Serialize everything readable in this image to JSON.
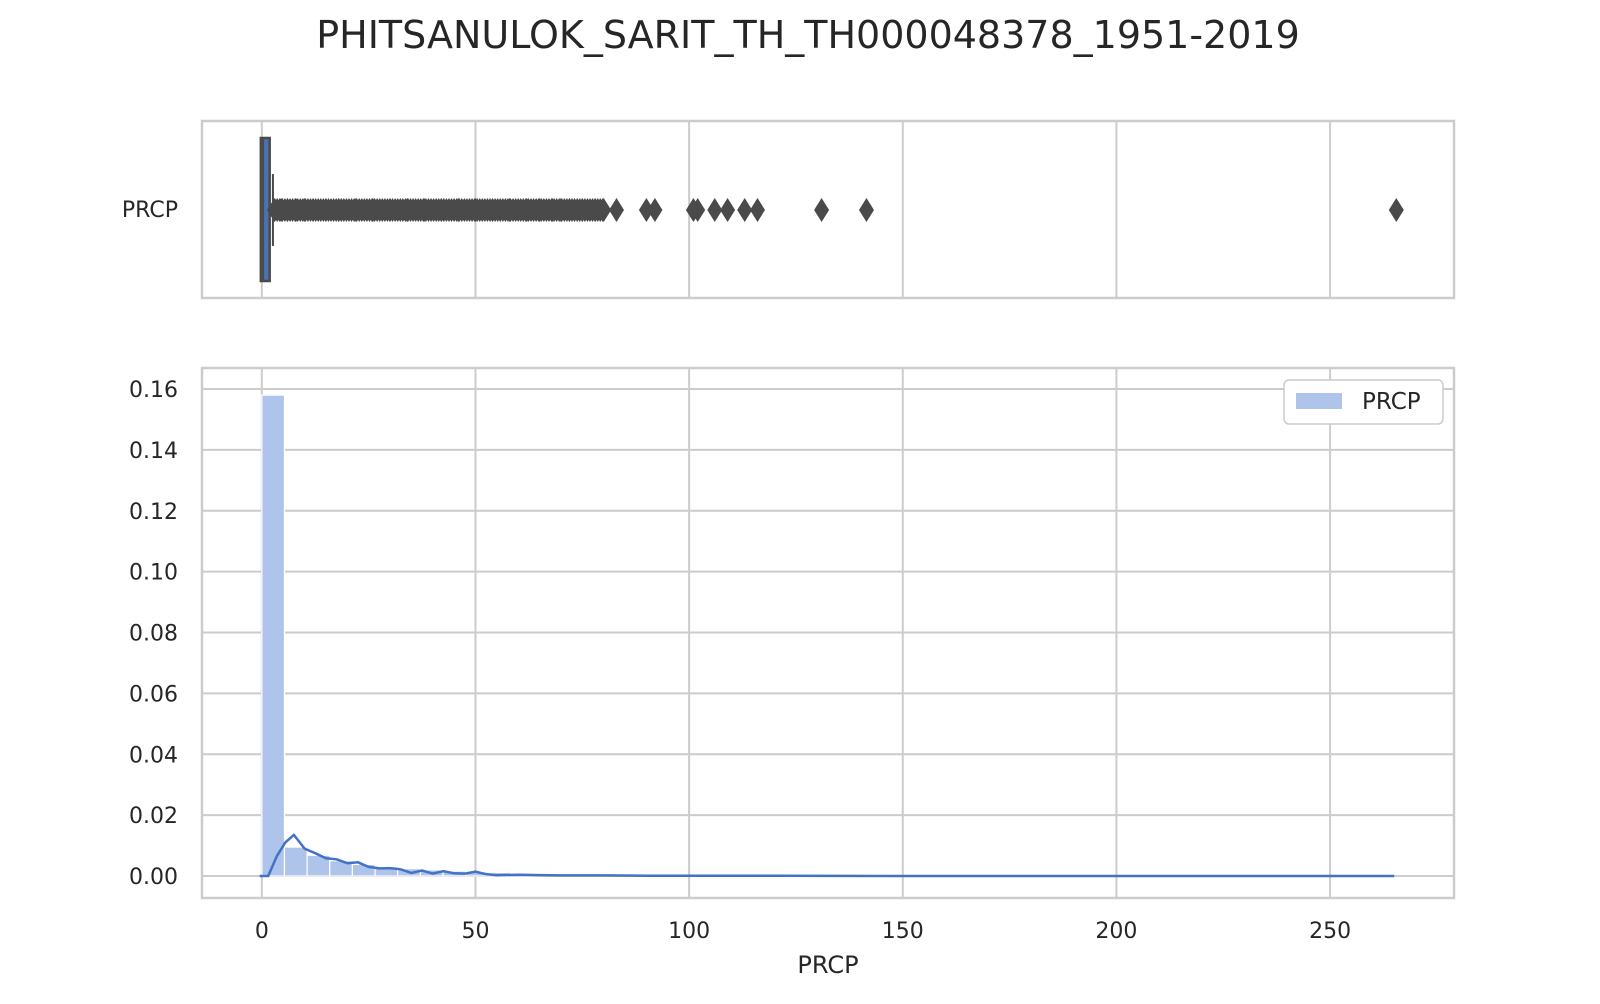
{
  "title": "PHITSANULOK_SARIT_TH_TH000048378_1951-2019",
  "chart_data": [
    {
      "type": "box",
      "orientation": "horizontal",
      "category_label": "PRCP",
      "xlim": [
        -14,
        279
      ],
      "x_ticks": [
        0,
        50,
        100,
        150,
        200,
        250
      ],
      "grid": true,
      "box": {
        "q1": 0.0,
        "median": 0.3,
        "q3": 1.6,
        "whisker_low": 0.0,
        "whisker_high": 2.6
      },
      "outliers": [
        3.0,
        4.5,
        6.0,
        8.0,
        10.0,
        12.0,
        15.0,
        18.0,
        22.0,
        26.0,
        30.0,
        34.0,
        38.0,
        42.0,
        46.0,
        50.0,
        54.0,
        58.0,
        62.0,
        65.0,
        68.0,
        70.0,
        72.0,
        75.0,
        78.0,
        80.0,
        83.0,
        90.0,
        92.0,
        101.0,
        102.0,
        106.0,
        109.0,
        113.0,
        116.0,
        131.0,
        141.5,
        265.5
      ],
      "colors": {
        "box": "#4c72b0",
        "line": "#4a4a4a"
      }
    },
    {
      "type": "histogram",
      "xlabel": "PRCP",
      "ylabel": "",
      "xlim": [
        -14,
        279
      ],
      "ylim": [
        0,
        0.165
      ],
      "x_ticks": [
        0,
        50,
        100,
        150,
        200,
        250
      ],
      "y_ticks": [
        "0.00",
        "0.02",
        "0.04",
        "0.06",
        "0.08",
        "0.10",
        "0.12",
        "0.14",
        "0.16"
      ],
      "grid": true,
      "legend": {
        "position": "top-right",
        "entries": [
          "PRCP"
        ]
      },
      "bin_width": 5.3,
      "bin_start": 0,
      "density": [
        0.158,
        0.0095,
        0.0068,
        0.005,
        0.0038,
        0.003,
        0.0024,
        0.002,
        0.0016,
        0.0013,
        0.0011,
        0.0009,
        0.0006,
        0.0005,
        0.0004,
        0.0003,
        0.0003,
        0.0002,
        0.0002,
        0.0001
      ],
      "kde": {
        "x": [
          -0.5,
          1.5,
          3.5,
          5.5,
          7.5,
          10,
          12.5,
          15,
          17.5,
          20,
          22.5,
          25,
          27.5,
          30,
          32.5,
          35,
          37.5,
          40,
          42.5,
          45,
          47.5,
          50,
          52.5,
          55,
          60,
          65,
          70,
          80,
          90,
          100,
          120,
          150,
          200,
          250,
          265
        ],
        "y": [
          0.0,
          0.0,
          0.0065,
          0.011,
          0.0135,
          0.009,
          0.0075,
          0.0058,
          0.0055,
          0.0042,
          0.0045,
          0.003,
          0.0025,
          0.0026,
          0.0022,
          0.001,
          0.0018,
          0.0008,
          0.0016,
          0.0009,
          0.0008,
          0.0014,
          0.0006,
          0.0003,
          0.0004,
          0.0003,
          0.0002,
          0.0002,
          0.0001,
          0.0001,
          0.0001,
          0.0,
          0.0,
          0.0,
          0.0
        ]
      },
      "colors": {
        "bar": "#aec4ea",
        "bar_edge": "#ffffff",
        "kde": "#4472c4"
      }
    }
  ]
}
